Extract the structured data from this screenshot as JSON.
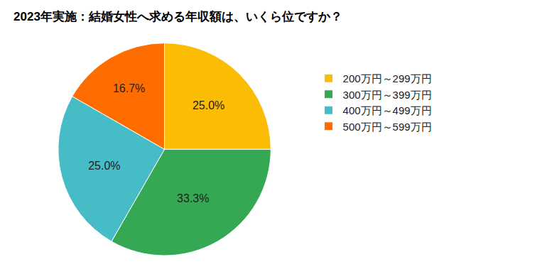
{
  "chart_data": {
    "type": "pie",
    "title": "2023年実施：結婚女性へ求める年収額は、いくら位ですか？",
    "categories": [
      "200万円～299万円",
      "300万円～399万円",
      "400万円～499万円",
      "500万円～599万円"
    ],
    "values": [
      25.0,
      33.3,
      25.0,
      16.7
    ],
    "value_labels": [
      "25.0%",
      "33.3%",
      "25.0%",
      "16.7%"
    ],
    "colors": [
      "#fbbc04",
      "#34a853",
      "#46bdc6",
      "#ff6d01"
    ],
    "data_labels": true,
    "legend": "right"
  }
}
